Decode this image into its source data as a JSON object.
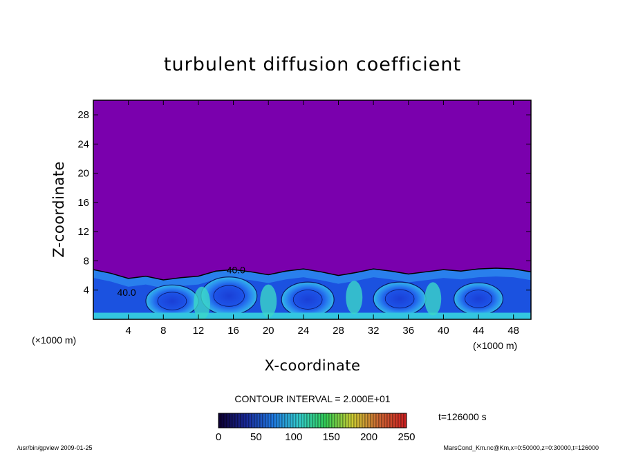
{
  "chart_data": {
    "type": "heatmap",
    "title": "turbulent diffusion coefficient",
    "xlabel": "X-coordinate",
    "ylabel": "Z-coordinate",
    "x_unit": "(×1000 m)",
    "y_unit": "(×1000 m)",
    "xlim": [
      0,
      50
    ],
    "ylim": [
      0,
      30
    ],
    "xticks": [
      4,
      8,
      12,
      16,
      20,
      24,
      28,
      32,
      36,
      40,
      44,
      48
    ],
    "yticks": [
      4,
      8,
      12,
      16,
      20,
      24,
      28
    ],
    "background_color": "#7a00ad",
    "contour_interval_text": "CONTOUR INTERVAL = 2.000E+01",
    "contour_labels": [
      {
        "x": 16.3,
        "z": 6.3,
        "text": "40.0"
      },
      {
        "x": 3.8,
        "z": 3.2,
        "text": "40.0"
      }
    ],
    "boundary_layer_top_z": [
      [
        0,
        6.8
      ],
      [
        2,
        6.3
      ],
      [
        4,
        5.6
      ],
      [
        6,
        5.9
      ],
      [
        8,
        5.4
      ],
      [
        10,
        5.7
      ],
      [
        12,
        5.9
      ],
      [
        14,
        6.6
      ],
      [
        16,
        6.8
      ],
      [
        18,
        6.5
      ],
      [
        20,
        6.1
      ],
      [
        22,
        6.6
      ],
      [
        24,
        6.9
      ],
      [
        26,
        6.5
      ],
      [
        28,
        6.0
      ],
      [
        30,
        6.4
      ],
      [
        32,
        6.9
      ],
      [
        34,
        6.6
      ],
      [
        36,
        6.2
      ],
      [
        38,
        6.5
      ],
      [
        40,
        6.8
      ],
      [
        42,
        6.6
      ],
      [
        44,
        6.9
      ],
      [
        46,
        7.0
      ],
      [
        48,
        6.9
      ],
      [
        50,
        6.5
      ]
    ],
    "eddies": [
      {
        "x": 9.0,
        "z": 2.5,
        "rx": 3.0,
        "rz": 2.2
      },
      {
        "x": 15.5,
        "z": 3.2,
        "rx": 3.2,
        "rz": 2.6
      },
      {
        "x": 24.5,
        "z": 2.7,
        "rx": 3.0,
        "rz": 2.4
      },
      {
        "x": 35.0,
        "z": 2.8,
        "rx": 3.0,
        "rz": 2.3
      },
      {
        "x": 44.0,
        "z": 2.8,
        "rx": 2.8,
        "rz": 2.2
      }
    ],
    "colorbar": {
      "ticks": [
        0,
        50,
        100,
        150,
        200,
        250
      ],
      "range": [
        0,
        250
      ],
      "colors": [
        "#0d0033",
        "#1a2a99",
        "#1f77e0",
        "#33cccc",
        "#33cc55",
        "#cccc33",
        "#cc6633",
        "#cc2222"
      ]
    },
    "time_label": "t=126000 s"
  },
  "footer": {
    "left": "/usr/bin/gpview   2009-01-25",
    "right": "MarsCond_Km.nc@Km,x=0:50000,z=0:30000,t=126000"
  }
}
